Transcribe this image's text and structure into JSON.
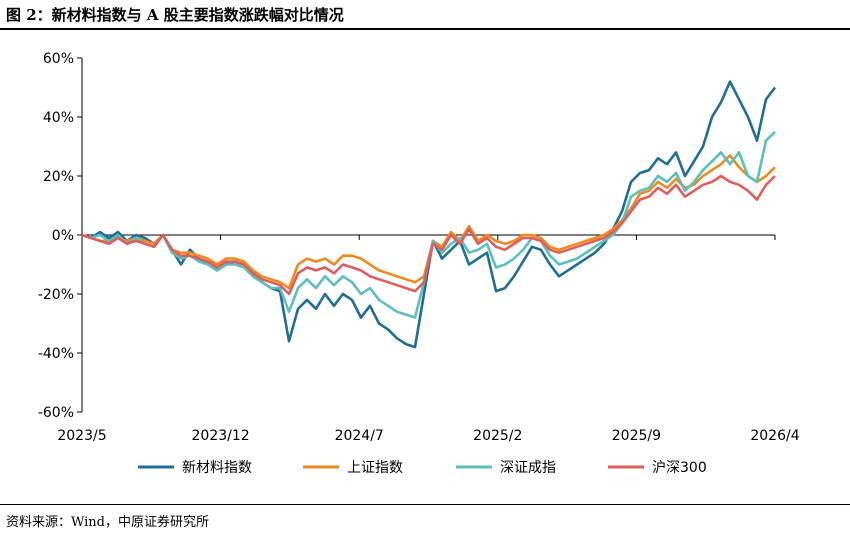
{
  "title": "图 2：新材料指数与 A 股主要指数涨跌幅对比情况",
  "source": "资料来源：Wind，中原证券研究所",
  "chart_data": {
    "type": "line",
    "y_tick_labels": [
      "60%",
      "40%",
      "20%",
      "0%",
      "-20%",
      "-40%",
      "-60%"
    ],
    "y_ticks": [
      60,
      40,
      20,
      0,
      -20,
      -40,
      -60
    ],
    "ylim": [
      -60,
      60
    ],
    "x_tick_labels": [
      "2023/5",
      "2023/12",
      "2024/7",
      "2025/2",
      "2025/9",
      "2026/4"
    ],
    "x_tick_positions": [
      0,
      0.2,
      0.4,
      0.6,
      0.8,
      1.0
    ],
    "grid": false,
    "legend_position": "bottom",
    "series": [
      {
        "name": "新材料指数",
        "color": "#1f6e94",
        "values": [
          0,
          -1,
          1,
          -1,
          1,
          -2,
          0,
          -1,
          -3,
          0,
          -5,
          -10,
          -5,
          -8,
          -10,
          -12,
          -10,
          -9,
          -10,
          -14,
          -16,
          -18,
          -19,
          -36,
          -25,
          -22,
          -25,
          -20,
          -24,
          -20,
          -22,
          -28,
          -24,
          -30,
          -32,
          -35,
          -37,
          -38,
          -20,
          -2,
          -8,
          -5,
          -2,
          -10,
          -8,
          -6,
          -19,
          -18,
          -14,
          -9,
          -4,
          -5,
          -10,
          -14,
          -12,
          -10,
          -8,
          -6,
          -3,
          2,
          8,
          18,
          21,
          22,
          26,
          24,
          28,
          20,
          25,
          30,
          40,
          45,
          52,
          46,
          40,
          32,
          46,
          50
        ]
      },
      {
        "name": "上证指数",
        "color": "#f08a1e",
        "values": [
          0,
          -1,
          -2,
          -2,
          -1,
          -2,
          -1,
          -2,
          -3,
          0,
          -5,
          -6,
          -6,
          -7,
          -8,
          -10,
          -8,
          -8,
          -9,
          -12,
          -14,
          -15,
          -16,
          -18,
          -10,
          -8,
          -9,
          -8,
          -10,
          -7,
          -7,
          -8,
          -10,
          -12,
          -13,
          -14,
          -15,
          -16,
          -14,
          -2,
          -4,
          1,
          -2,
          3,
          -2,
          0,
          -2,
          -3,
          -2,
          0,
          0,
          -1,
          -4,
          -5,
          -4,
          -3,
          -2,
          -1,
          0,
          2,
          5,
          9,
          14,
          15,
          18,
          16,
          19,
          16,
          17,
          20,
          22,
          24,
          27,
          23,
          20,
          18,
          20,
          23
        ]
      },
      {
        "name": "深证成指",
        "color": "#5cbfba",
        "values": [
          0,
          -1,
          0,
          -2,
          0,
          -3,
          -1,
          -3,
          -4,
          0,
          -6,
          -8,
          -7,
          -9,
          -10,
          -12,
          -10,
          -10,
          -11,
          -14,
          -16,
          -18,
          -18,
          -26,
          -18,
          -15,
          -18,
          -14,
          -17,
          -14,
          -16,
          -20,
          -18,
          -22,
          -24,
          -26,
          -27,
          -28,
          -16,
          -2,
          -6,
          -3,
          -1,
          -6,
          -5,
          -3,
          -11,
          -10,
          -8,
          -5,
          -1,
          -2,
          -7,
          -10,
          -9,
          -8,
          -6,
          -4,
          -2,
          0,
          4,
          13,
          15,
          16,
          20,
          18,
          21,
          15,
          18,
          22,
          25,
          28,
          24,
          28,
          20,
          18,
          32,
          35
        ]
      },
      {
        "name": "沪深300",
        "color": "#e05d5d",
        "values": [
          0,
          -1,
          -2,
          -3,
          -1,
          -3,
          -2,
          -3,
          -4,
          0,
          -5,
          -7,
          -7,
          -8,
          -9,
          -11,
          -9,
          -9,
          -10,
          -13,
          -15,
          -16,
          -17,
          -20,
          -13,
          -11,
          -12,
          -11,
          -13,
          -10,
          -11,
          -12,
          -14,
          -15,
          -16,
          -17,
          -18,
          -19,
          -16,
          -3,
          -5,
          0,
          -3,
          2,
          -3,
          -1,
          -4,
          -5,
          -3,
          -1,
          -1,
          -2,
          -5,
          -6,
          -5,
          -4,
          -3,
          -2,
          -1,
          1,
          4,
          8,
          12,
          13,
          16,
          14,
          17,
          13,
          15,
          17,
          18,
          20,
          18,
          17,
          15,
          12,
          17,
          20
        ]
      }
    ]
  }
}
